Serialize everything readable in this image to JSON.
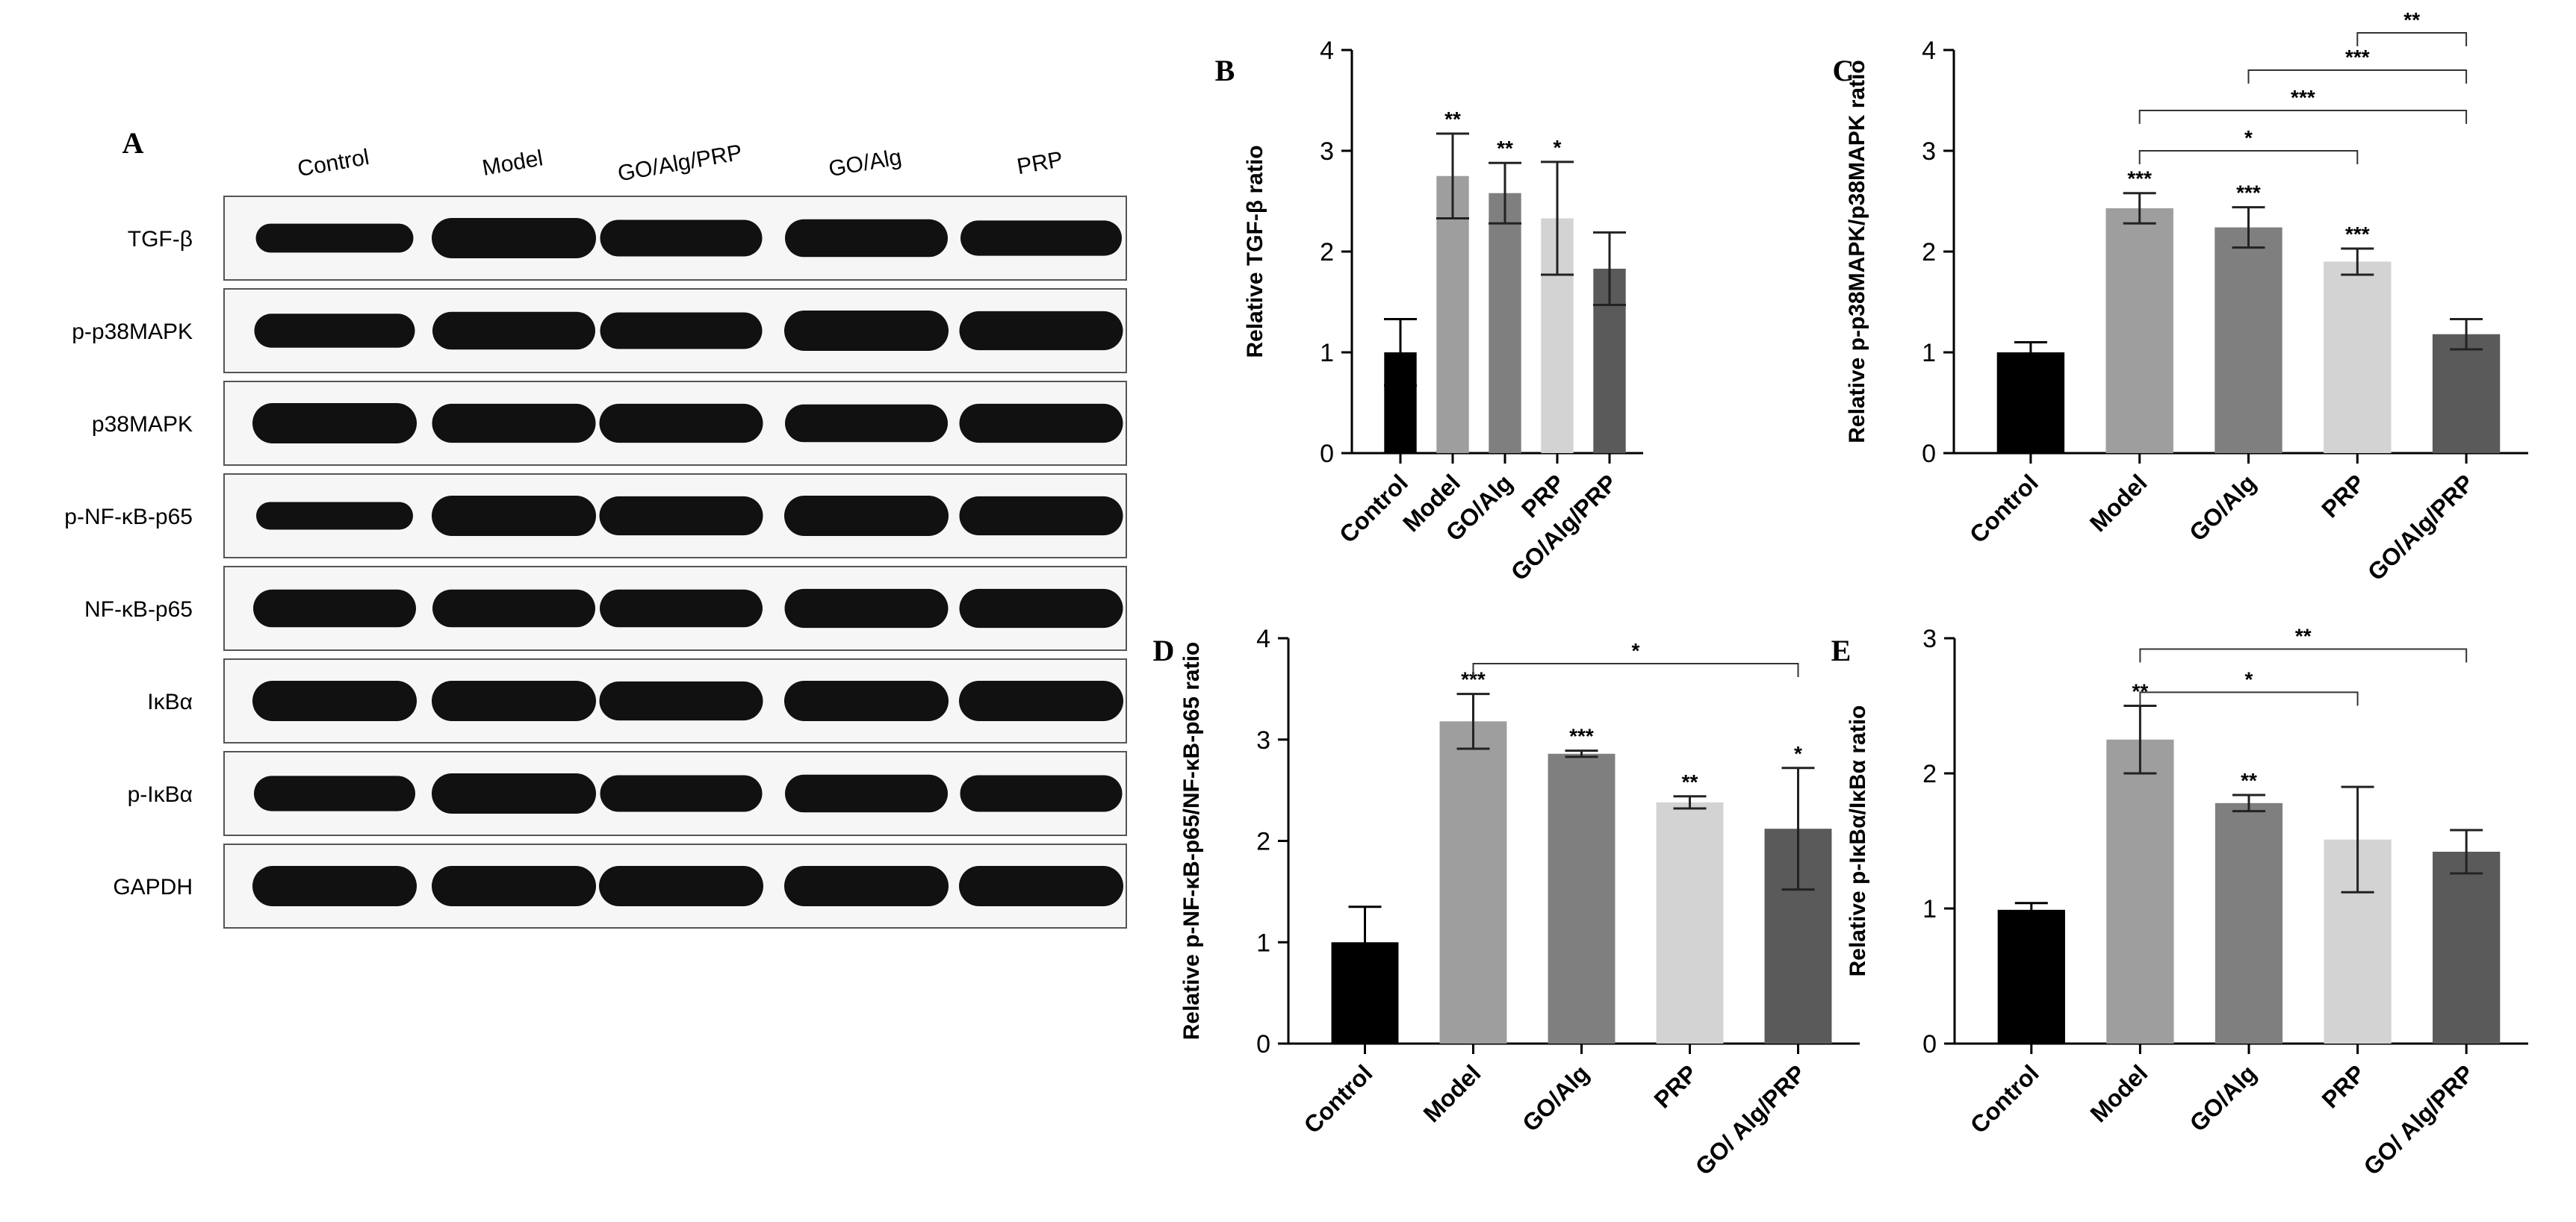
{
  "blot": {
    "letter": "A",
    "columns": [
      "Control",
      "Model",
      "GO/Alg/PRP",
      "GO/Alg",
      "PRP"
    ],
    "rows": [
      {
        "label": "TGF-β",
        "intensity": [
          0.55,
          1.0,
          0.85,
          0.9,
          0.8
        ]
      },
      {
        "label": "p-p38MAPK",
        "intensity": [
          0.75,
          0.9,
          0.85,
          1.0,
          0.95
        ]
      },
      {
        "label": "p38MAPK",
        "intensity": [
          1.0,
          0.95,
          0.95,
          0.9,
          0.95
        ]
      },
      {
        "label": "p-NF-κB-p65",
        "intensity": [
          0.5,
          1.0,
          0.95,
          1.0,
          0.95
        ]
      },
      {
        "label": "NF-κB-p65",
        "intensity": [
          0.9,
          0.9,
          0.9,
          0.95,
          0.95
        ]
      },
      {
        "label": "IκBα",
        "intensity": [
          1.0,
          1.0,
          0.95,
          1.0,
          1.0
        ]
      },
      {
        "label": "p-IκBα",
        "intensity": [
          0.8,
          1.0,
          0.85,
          0.9,
          0.85
        ]
      },
      {
        "label": "GAPDH",
        "intensity": [
          1.0,
          1.0,
          1.0,
          1.0,
          1.0
        ]
      }
    ]
  },
  "chart_data": [
    {
      "letter": "B",
      "type": "bar",
      "ylabel": "Relative TGF-β ratio",
      "ylim": [
        0,
        4
      ],
      "yticks": [
        "0",
        "1",
        "2",
        "3",
        "4"
      ],
      "categories": [
        "Control",
        "Model",
        "GO/Alg",
        "PRP",
        "GO/Alg/PRP"
      ],
      "values": [
        1.0,
        2.75,
        2.58,
        2.33,
        1.83
      ],
      "errors": [
        0.33,
        0.42,
        0.3,
        0.56,
        0.36
      ],
      "stars": [
        "",
        "**",
        "**",
        "*",
        ""
      ],
      "comparisons": [],
      "colors": [
        "#000000",
        "#9e9e9e",
        "#7f7f7f",
        "#d3d3d3",
        "#5a5a5a"
      ]
    },
    {
      "letter": "C",
      "type": "bar",
      "ylabel": "Relative p-p38MAPK/p38MAPK ratio",
      "ylim": [
        0,
        4
      ],
      "yticks": [
        "0",
        "1",
        "2",
        "3",
        "4"
      ],
      "categories": [
        "Control",
        "Model",
        "GO/Alg",
        "PRP",
        "GO/Alg/PRP"
      ],
      "values": [
        1.0,
        2.43,
        2.24,
        1.9,
        1.18
      ],
      "errors": [
        0.1,
        0.15,
        0.2,
        0.13,
        0.15
      ],
      "stars": [
        "",
        "***",
        "***",
        "***",
        ""
      ],
      "comparisons": [
        {
          "from": 3,
          "to": 4,
          "y": 4.17,
          "label": "**"
        },
        {
          "from": 2,
          "to": 4,
          "y": 3.8,
          "label": "***"
        },
        {
          "from": 1,
          "to": 4,
          "y": 3.4,
          "label": "***"
        },
        {
          "from": 1,
          "to": 3,
          "y": 3.0,
          "label": "*"
        }
      ],
      "colors": [
        "#000000",
        "#9e9e9e",
        "#7f7f7f",
        "#d3d3d3",
        "#5a5a5a"
      ]
    },
    {
      "letter": "D",
      "type": "bar",
      "ylabel": "Relative p-NF-κB-p65/NF-κB-p65 ratio",
      "ylim": [
        0,
        4
      ],
      "yticks": [
        "0",
        "1",
        "2",
        "3",
        "4"
      ],
      "categories": [
        "Control",
        "Model",
        "GO/Alg",
        "PRP",
        "GO/ Alg/PRP"
      ],
      "values": [
        1.0,
        3.18,
        2.86,
        2.38,
        2.12
      ],
      "errors": [
        0.35,
        0.27,
        0.03,
        0.06,
        0.6
      ],
      "stars": [
        "",
        "***",
        "***",
        "**",
        "*"
      ],
      "comparisons": [
        {
          "from": 1,
          "to": 4,
          "y": 3.75,
          "label": "*"
        }
      ],
      "colors": [
        "#000000",
        "#9e9e9e",
        "#7f7f7f",
        "#d3d3d3",
        "#5a5a5a"
      ]
    },
    {
      "letter": "E",
      "type": "bar",
      "ylabel": "Relative p-IκBα/IκBα ratio",
      "ylim": [
        0,
        3
      ],
      "yticks": [
        "0",
        "1",
        "2",
        "3"
      ],
      "categories": [
        "Control",
        "Model",
        "GO/Alg",
        "PRP",
        "GO/ Alg/PRP"
      ],
      "values": [
        0.99,
        2.25,
        1.78,
        1.51,
        1.42
      ],
      "errors": [
        0.05,
        0.25,
        0.06,
        0.39,
        0.16
      ],
      "stars": [
        "",
        "**",
        "**",
        "",
        ""
      ],
      "comparisons": [
        {
          "from": 1,
          "to": 4,
          "y": 2.92,
          "label": "**"
        },
        {
          "from": 1,
          "to": 3,
          "y": 2.6,
          "label": "*"
        }
      ],
      "colors": [
        "#000000",
        "#9e9e9e",
        "#7f7f7f",
        "#d3d3d3",
        "#5a5a5a"
      ]
    }
  ]
}
